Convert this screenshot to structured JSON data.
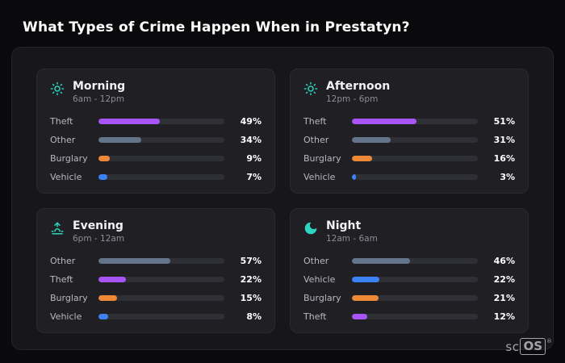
{
  "page": {
    "title": "What Types of Crime Happen When in Prestatyn?"
  },
  "brand": {
    "prefix": "sc",
    "boxed": "OS",
    "reg": "®"
  },
  "colors": {
    "theft": "#a855f7",
    "other": "#64748b",
    "burglary": "#ed8936",
    "vehicle": "#3b82f6",
    "accent_teal": "#2dd4bf",
    "bar_track": "#2f2f36"
  },
  "chart_data": [
    {
      "type": "bar",
      "orientation": "horizontal",
      "title": "Morning",
      "subtitle": "6am - 12pm",
      "icon": "sun-icon",
      "categories": [
        "Theft",
        "Other",
        "Burglary",
        "Vehicle"
      ],
      "values": [
        49,
        34,
        9,
        7
      ],
      "value_labels": [
        "49%",
        "34%",
        "9%",
        "7%"
      ],
      "bar_colors": [
        "#a855f7",
        "#64748b",
        "#ed8936",
        "#3b82f6"
      ],
      "xlim": [
        0,
        100
      ]
    },
    {
      "type": "bar",
      "orientation": "horizontal",
      "title": "Afternoon",
      "subtitle": "12pm - 6pm",
      "icon": "sun-icon",
      "categories": [
        "Theft",
        "Other",
        "Burglary",
        "Vehicle"
      ],
      "values": [
        51,
        31,
        16,
        3
      ],
      "value_labels": [
        "51%",
        "31%",
        "16%",
        "3%"
      ],
      "bar_colors": [
        "#a855f7",
        "#64748b",
        "#ed8936",
        "#3b82f6"
      ],
      "xlim": [
        0,
        100
      ]
    },
    {
      "type": "bar",
      "orientation": "horizontal",
      "title": "Evening",
      "subtitle": "6pm - 12am",
      "icon": "sunset-icon",
      "categories": [
        "Other",
        "Theft",
        "Burglary",
        "Vehicle"
      ],
      "values": [
        57,
        22,
        15,
        8
      ],
      "value_labels": [
        "57%",
        "22%",
        "15%",
        "8%"
      ],
      "bar_colors": [
        "#64748b",
        "#a855f7",
        "#ed8936",
        "#3b82f6"
      ],
      "xlim": [
        0,
        100
      ]
    },
    {
      "type": "bar",
      "orientation": "horizontal",
      "title": "Night",
      "subtitle": "12am - 6am",
      "icon": "moon-icon",
      "categories": [
        "Other",
        "Vehicle",
        "Burglary",
        "Theft"
      ],
      "values": [
        46,
        22,
        21,
        12
      ],
      "value_labels": [
        "46%",
        "22%",
        "21%",
        "12%"
      ],
      "bar_colors": [
        "#64748b",
        "#3b82f6",
        "#ed8936",
        "#a855f7"
      ],
      "xlim": [
        0,
        100
      ]
    }
  ]
}
